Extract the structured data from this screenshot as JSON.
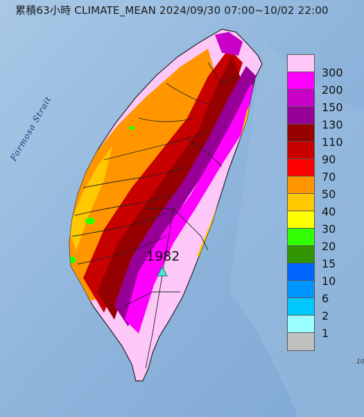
{
  "title": "累積63小時 CLIMATE_MEAN 2024/09/30 07:00~10/02 22:00",
  "water_label": "Formosa Strait",
  "station": {
    "value": "1982",
    "marker": "triangle-icon",
    "color": "#4fe3d8"
  },
  "edge_text": "10",
  "legend": [
    {
      "label": "300",
      "color": "#fdc8f8"
    },
    {
      "label": "200",
      "color": "#ff00ff"
    },
    {
      "label": "150",
      "color": "#c800c8"
    },
    {
      "label": "130",
      "color": "#960096"
    },
    {
      "label": "110",
      "color": "#960000"
    },
    {
      "label": "90",
      "color": "#c80000"
    },
    {
      "label": "70",
      "color": "#ff0000"
    },
    {
      "label": "50",
      "color": "#ff9600"
    },
    {
      "label": "40",
      "color": "#ffc800"
    },
    {
      "label": "30",
      "color": "#ffff00"
    },
    {
      "label": "20",
      "color": "#32ff00"
    },
    {
      "label": "15",
      "color": "#329600"
    },
    {
      "label": "10",
      "color": "#0064ff"
    },
    {
      "label": "6",
      "color": "#0096ff"
    },
    {
      "label": "2",
      "color": "#00c8ff"
    },
    {
      "label": "1",
      "color": "#9bffff"
    },
    {
      "label": "",
      "color": "#c0c0c0"
    }
  ]
}
